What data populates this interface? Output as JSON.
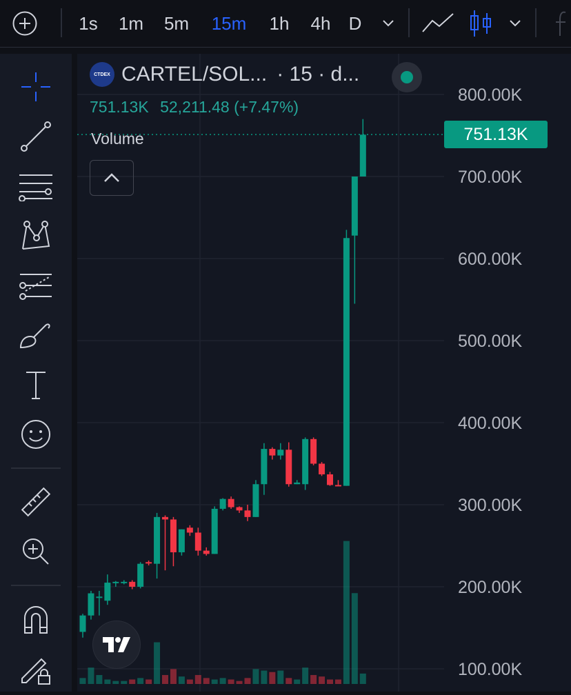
{
  "toolbar": {
    "add_icon": "plus-circle-icon",
    "intervals": [
      "1s",
      "1m",
      "5m",
      "15m",
      "1h",
      "4h",
      "D"
    ],
    "active_interval": "15m",
    "chart_types": [
      "line-chart-icon",
      "candle-chart-icon"
    ]
  },
  "sidebar": {
    "tools": [
      "crosshair-icon",
      "trend-line-icon",
      "fib-retracement-icon",
      "pattern-icon",
      "projection-icon",
      "brush-icon",
      "text-icon",
      "emoji-icon",
      "ruler-icon",
      "zoom-in-icon",
      "magnet-icon",
      "lock-drawings-icon"
    ]
  },
  "legend": {
    "logo_text": "CTDEX",
    "symbol": "CARTEL/SOL...",
    "rest": "· 15 · d...",
    "last_price": "751.13K",
    "change": "52,211.48 (+7.47%)",
    "volume_label": "Volume"
  },
  "price_tag": "751.13K",
  "colors": {
    "up": "#089981",
    "down": "#f23645",
    "accent": "#2962ff"
  },
  "chart_data": {
    "type": "candlestick",
    "y_ticks": [
      "800.00K",
      "700.00K",
      "600.00K",
      "500.00K",
      "400.00K",
      "300.00K",
      "200.00K",
      "100.00K"
    ],
    "tick_values": [
      800,
      700,
      600,
      500,
      400,
      300,
      200,
      100
    ],
    "ylim": [
      93,
      830
    ],
    "last_price": 751.13,
    "candles": [
      {
        "o": 145,
        "h": 167,
        "l": 138,
        "c": 165
      },
      {
        "o": 165,
        "h": 195,
        "l": 160,
        "c": 192
      },
      {
        "o": 188,
        "h": 195,
        "l": 165,
        "c": 188
      },
      {
        "o": 183,
        "h": 215,
        "l": 178,
        "c": 205
      },
      {
        "o": 205,
        "h": 207,
        "l": 200,
        "c": 206
      },
      {
        "o": 205,
        "h": 208,
        "l": 203,
        "c": 206
      },
      {
        "o": 206,
        "h": 208,
        "l": 197,
        "c": 200
      },
      {
        "o": 200,
        "h": 230,
        "l": 198,
        "c": 228
      },
      {
        "o": 230,
        "h": 232,
        "l": 226,
        "c": 229
      },
      {
        "o": 228,
        "h": 290,
        "l": 210,
        "c": 285
      },
      {
        "o": 285,
        "h": 287,
        "l": 220,
        "c": 282
      },
      {
        "o": 282,
        "h": 285,
        "l": 225,
        "c": 242
      },
      {
        "o": 242,
        "h": 270,
        "l": 238,
        "c": 270
      },
      {
        "o": 272,
        "h": 275,
        "l": 262,
        "c": 266
      },
      {
        "o": 266,
        "h": 272,
        "l": 238,
        "c": 244
      },
      {
        "o": 244,
        "h": 248,
        "l": 238,
        "c": 240
      },
      {
        "o": 240,
        "h": 298,
        "l": 240,
        "c": 295
      },
      {
        "o": 295,
        "h": 308,
        "l": 293,
        "c": 307
      },
      {
        "o": 307,
        "h": 310,
        "l": 295,
        "c": 297
      },
      {
        "o": 297,
        "h": 298,
        "l": 290,
        "c": 293
      },
      {
        "o": 293,
        "h": 300,
        "l": 280,
        "c": 285
      },
      {
        "o": 285,
        "h": 330,
        "l": 285,
        "c": 325
      },
      {
        "o": 325,
        "h": 375,
        "l": 312,
        "c": 368
      },
      {
        "o": 368,
        "h": 370,
        "l": 355,
        "c": 360
      },
      {
        "o": 360,
        "h": 375,
        "l": 355,
        "c": 367
      },
      {
        "o": 367,
        "h": 376,
        "l": 322,
        "c": 325
      },
      {
        "o": 325,
        "h": 330,
        "l": 325,
        "c": 327
      },
      {
        "o": 325,
        "h": 382,
        "l": 318,
        "c": 380
      },
      {
        "o": 380,
        "h": 382,
        "l": 348,
        "c": 350
      },
      {
        "o": 350,
        "h": 352,
        "l": 335,
        "c": 337
      },
      {
        "o": 337,
        "h": 340,
        "l": 323,
        "c": 324
      },
      {
        "o": 324,
        "h": 330,
        "l": 323,
        "c": 323
      },
      {
        "o": 323,
        "h": 635,
        "l": 323,
        "c": 625
      },
      {
        "o": 628,
        "h": 700,
        "l": 545,
        "c": 700
      },
      {
        "o": 700,
        "h": 770,
        "l": 700,
        "c": 751
      }
    ],
    "volume": [
      8,
      22,
      12,
      6,
      4,
      4,
      6,
      8,
      6,
      56,
      12,
      20,
      10,
      6,
      12,
      8,
      6,
      8,
      6,
      4,
      8,
      20,
      18,
      16,
      18,
      8,
      6,
      22,
      12,
      10,
      6,
      6,
      192,
      122,
      14
    ],
    "volume_max": 250
  }
}
